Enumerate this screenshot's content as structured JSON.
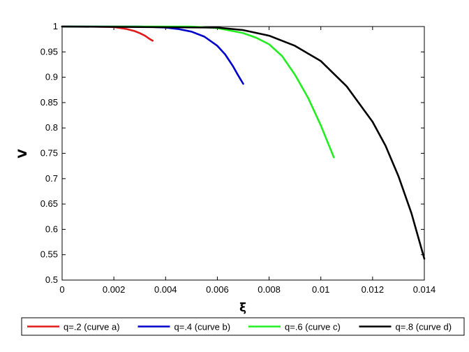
{
  "chart_data": {
    "type": "line",
    "title": "",
    "xlabel": "ξ",
    "ylabel": "V",
    "xlim": [
      0,
      0.014
    ],
    "ylim": [
      0.5,
      1
    ],
    "xticks": [
      "0",
      "0.002",
      "0.004",
      "0.006",
      "0.008",
      "0.01",
      "0.012",
      "0.014"
    ],
    "yticks": [
      "0.5",
      "0.55",
      "0.6",
      "0.65",
      "0.7",
      "0.75",
      "0.8",
      "0.85",
      "0.9",
      "0.95",
      "1"
    ],
    "grid": false,
    "legend_position": "bottom",
    "series": [
      {
        "name": "q=.2 (curve a)",
        "color": "#e31a1c",
        "x": [
          0.0,
          0.001,
          0.002,
          0.0025,
          0.0028,
          0.003,
          0.0032,
          0.0034,
          0.0035
        ],
        "y": [
          1.0,
          1.0,
          0.999,
          0.995,
          0.991,
          0.987,
          0.982,
          0.975,
          0.972
        ]
      },
      {
        "name": "q=.4 (curve b)",
        "color": "#0000cc",
        "x": [
          0.0,
          0.003,
          0.004,
          0.0045,
          0.005,
          0.0055,
          0.006,
          0.0063,
          0.0066,
          0.0068,
          0.007
        ],
        "y": [
          1.0,
          1.0,
          0.998,
          0.995,
          0.99,
          0.98,
          0.962,
          0.945,
          0.922,
          0.904,
          0.887
        ]
      },
      {
        "name": "q=.6 (curve c)",
        "color": "#22ee22",
        "x": [
          0.0,
          0.005,
          0.006,
          0.007,
          0.0075,
          0.008,
          0.0085,
          0.009,
          0.0095,
          0.01,
          0.0105
        ],
        "y": [
          1.0,
          1.0,
          0.997,
          0.987,
          0.978,
          0.965,
          0.942,
          0.905,
          0.86,
          0.805,
          0.742
        ]
      },
      {
        "name": "q=.8 (curve d)",
        "color": "#000000",
        "x": [
          0.0,
          0.006,
          0.007,
          0.008,
          0.009,
          0.01,
          0.011,
          0.012,
          0.0125,
          0.013,
          0.0135,
          0.014
        ],
        "y": [
          1.0,
          0.998,
          0.993,
          0.982,
          0.962,
          0.932,
          0.882,
          0.812,
          0.765,
          0.705,
          0.632,
          0.542
        ]
      }
    ]
  }
}
